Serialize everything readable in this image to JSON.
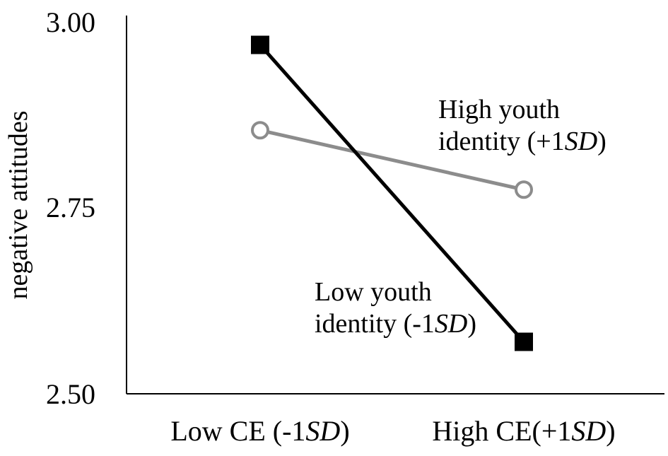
{
  "chart_data": {
    "type": "line",
    "xlabel": "",
    "ylabel": "negative attitudes",
    "categories": [
      {
        "pre": "Low CE (-1",
        "it": "SD",
        "post": ")"
      },
      {
        "pre": "High CE(+1",
        "it": "SD",
        "post": ")"
      }
    ],
    "ylim": [
      2.5,
      3.0
    ],
    "yticks": [
      "2.50",
      "2.75",
      "3.00"
    ],
    "grid": false,
    "series": [
      {
        "name": "Low youth identity (-1SD)",
        "values": [
          2.97,
          2.57
        ],
        "color": "#000000",
        "marker": "filled-square",
        "annotation": {
          "line1": "Low youth",
          "line2_pre": "identity (-1",
          "line2_it": "SD",
          "line2_post": ")"
        }
      },
      {
        "name": "High youth identity (+1SD)",
        "values": [
          2.855,
          2.775
        ],
        "color": "#8c8c8c",
        "marker": "open-circle",
        "annotation": {
          "line1": "High youth",
          "line2_pre": "identity (+1",
          "line2_it": "SD",
          "line2_post": ")"
        }
      }
    ]
  }
}
